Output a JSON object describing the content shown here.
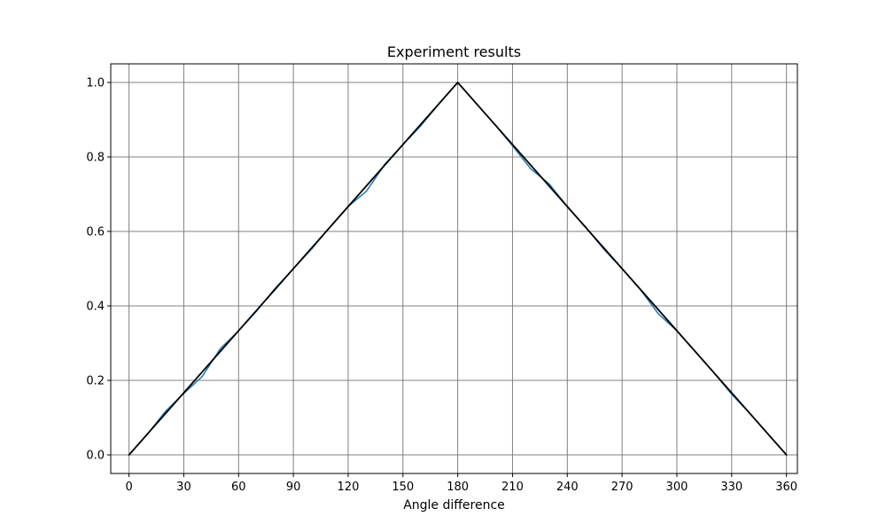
{
  "chart_data": {
    "type": "line",
    "title": "Experiment results",
    "xlabel": "Angle difference",
    "ylabel": "",
    "xlim": [
      -10,
      366
    ],
    "ylim": [
      -0.05,
      1.05
    ],
    "grid": true,
    "xticks": [
      0,
      30,
      60,
      90,
      120,
      150,
      180,
      210,
      240,
      270,
      300,
      330,
      360
    ],
    "yticks": [
      0.0,
      0.2,
      0.4,
      0.6,
      0.8,
      1.0
    ],
    "ytick_labels": [
      "0.0",
      "0.2",
      "0.4",
      "0.6",
      "0.8",
      "1.0"
    ],
    "series": [
      {
        "color": "#1f77b4",
        "x": [
          0,
          10,
          20,
          30,
          40,
          50,
          60,
          70,
          80,
          90,
          100,
          110,
          120,
          130,
          140,
          150,
          160,
          170,
          180,
          190,
          200,
          210,
          220,
          230,
          240,
          250,
          260,
          270,
          280,
          290,
          300,
          310,
          320,
          330,
          340,
          350,
          360
        ],
        "values": [
          0.0,
          0.055,
          0.117,
          0.165,
          0.21,
          0.285,
          0.333,
          0.387,
          0.447,
          0.5,
          0.553,
          0.612,
          0.667,
          0.708,
          0.78,
          0.833,
          0.885,
          0.944,
          1.0,
          0.944,
          0.889,
          0.83,
          0.768,
          0.728,
          0.667,
          0.612,
          0.552,
          0.5,
          0.444,
          0.378,
          0.333,
          0.278,
          0.222,
          0.163,
          0.111,
          0.055,
          0.0
        ]
      },
      {
        "color": "#000000",
        "x": [
          0,
          180,
          360
        ],
        "values": [
          0.0,
          1.0,
          0.0
        ]
      }
    ]
  }
}
